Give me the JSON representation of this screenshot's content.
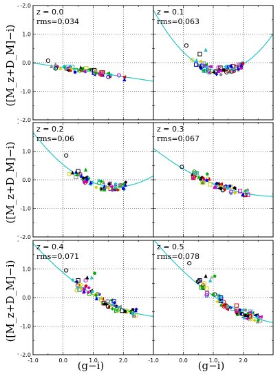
{
  "chart_data": {
    "type": "scatter",
    "layout": "3x2 grid",
    "xlabel": "(g−i)",
    "ylabel": "([M_z+D_M]−i)",
    "xlim": [
      -1.0,
      3.0
    ],
    "ylim": [
      -2.0,
      2.0
    ],
    "xticks": [
      "-1.0",
      "0.0",
      "1.0",
      "2.0"
    ],
    "yticks": [
      "-2.0",
      "-1.0",
      "0.0",
      "1.0"
    ],
    "grid": "dotted",
    "fit_color": "#22c7c7",
    "panels": [
      {
        "z_label": "z = 0.0",
        "rms_label": "rms",
        "rms_value": "=0.034",
        "fit": {
          "a": -0.17,
          "b": -0.16,
          "c": 0.0
        },
        "x_range": [
          -0.5,
          2.1
        ],
        "spread": 0.05,
        "n": 55,
        "outliers": [
          [
            -0.5,
            0.07,
            "circle",
            "#000000"
          ]
        ]
      },
      {
        "z_label": "z = 0.1",
        "rms_label": "rms",
        "rms_value": "=0.063",
        "fit": {
          "a": 0.37,
          "b": -1.05,
          "c": 0.42
        },
        "x_range": [
          0.4,
          2.0
        ],
        "spread": 0.07,
        "n": 60,
        "outliers": [
          [
            0.1,
            0.6,
            "circle",
            "#000000"
          ],
          [
            0.55,
            0.3,
            "square",
            "#000000"
          ],
          [
            0.75,
            0.45,
            "triangle",
            "#22bbcc"
          ],
          [
            0.3,
            0.1,
            "circle",
            "#cccc00"
          ]
        ]
      },
      {
        "z_label": "z = 0.2",
        "rms_label": "rms",
        "rms_value": "=0.06",
        "fit": {
          "a": 0.53,
          "b": -0.88,
          "c": 0.25
        },
        "x_range": [
          0.3,
          2.1
        ],
        "spread": 0.07,
        "n": 60,
        "outliers": [
          [
            0.1,
            0.85,
            "circle",
            "#000000"
          ],
          [
            0.2,
            0.2,
            "circle",
            "#cccc00"
          ],
          [
            0.5,
            0.3,
            "square",
            "#000000"
          ],
          [
            0.75,
            0.35,
            "triangle",
            "#00aa00"
          ]
        ]
      },
      {
        "z_label": "z = 0.3",
        "rms_label": "rms",
        "rms_value": "=0.067",
        "fit": {
          "a": 0.38,
          "b": -0.62,
          "c": 0.1
        },
        "x_range": [
          0.3,
          2.2
        ],
        "spread": 0.07,
        "n": 60,
        "outliers": [
          [
            -0.05,
            0.45,
            "circle",
            "#000000"
          ],
          [
            0.8,
            0.2,
            "pentagon",
            "#00aa00"
          ]
        ]
      },
      {
        "z_label": "z = 0.4",
        "rms_label": "rms",
        "rms_value": "=0.071",
        "fit": {
          "a": 0.87,
          "b": -0.9,
          "c": 0.13
        },
        "x_range": [
          0.3,
          2.5
        ],
        "spread": 0.08,
        "n": 70,
        "outliers": [
          [
            0.1,
            0.95,
            "circle",
            "#000000"
          ],
          [
            0.45,
            0.25,
            "circle",
            "#cccc00"
          ],
          [
            0.5,
            0.6,
            "square",
            "#000000"
          ],
          [
            0.75,
            0.6,
            "circle",
            "#cc00cc"
          ],
          [
            0.95,
            0.7,
            "triangle",
            "#22bbcc"
          ],
          [
            1.05,
            0.85,
            "pentagon",
            "#00aa00"
          ],
          [
            0.8,
            0.7,
            "triangle",
            "#000000"
          ]
        ]
      },
      {
        "z_label": "z = 0.5",
        "rms_label": "rms",
        "rms_value": "=0.078",
        "fit": {
          "a": 0.92,
          "b": -0.99,
          "c": 0.13
        },
        "x_range": [
          0.4,
          2.6
        ],
        "spread": 0.08,
        "n": 75,
        "outliers": [
          [
            0.2,
            1.2,
            "circle",
            "#000000"
          ],
          [
            0.55,
            0.6,
            "square",
            "#000000"
          ],
          [
            0.75,
            0.75,
            "triangle",
            "#000000"
          ],
          [
            0.95,
            0.7,
            "pentagon",
            "#bbbbbb"
          ],
          [
            1.05,
            0.75,
            "pentagon",
            "#00aa00"
          ],
          [
            0.9,
            0.6,
            "triangle",
            "#22bbcc"
          ],
          [
            0.7,
            0.5,
            "circle",
            "#cccc00"
          ]
        ]
      }
    ]
  }
}
